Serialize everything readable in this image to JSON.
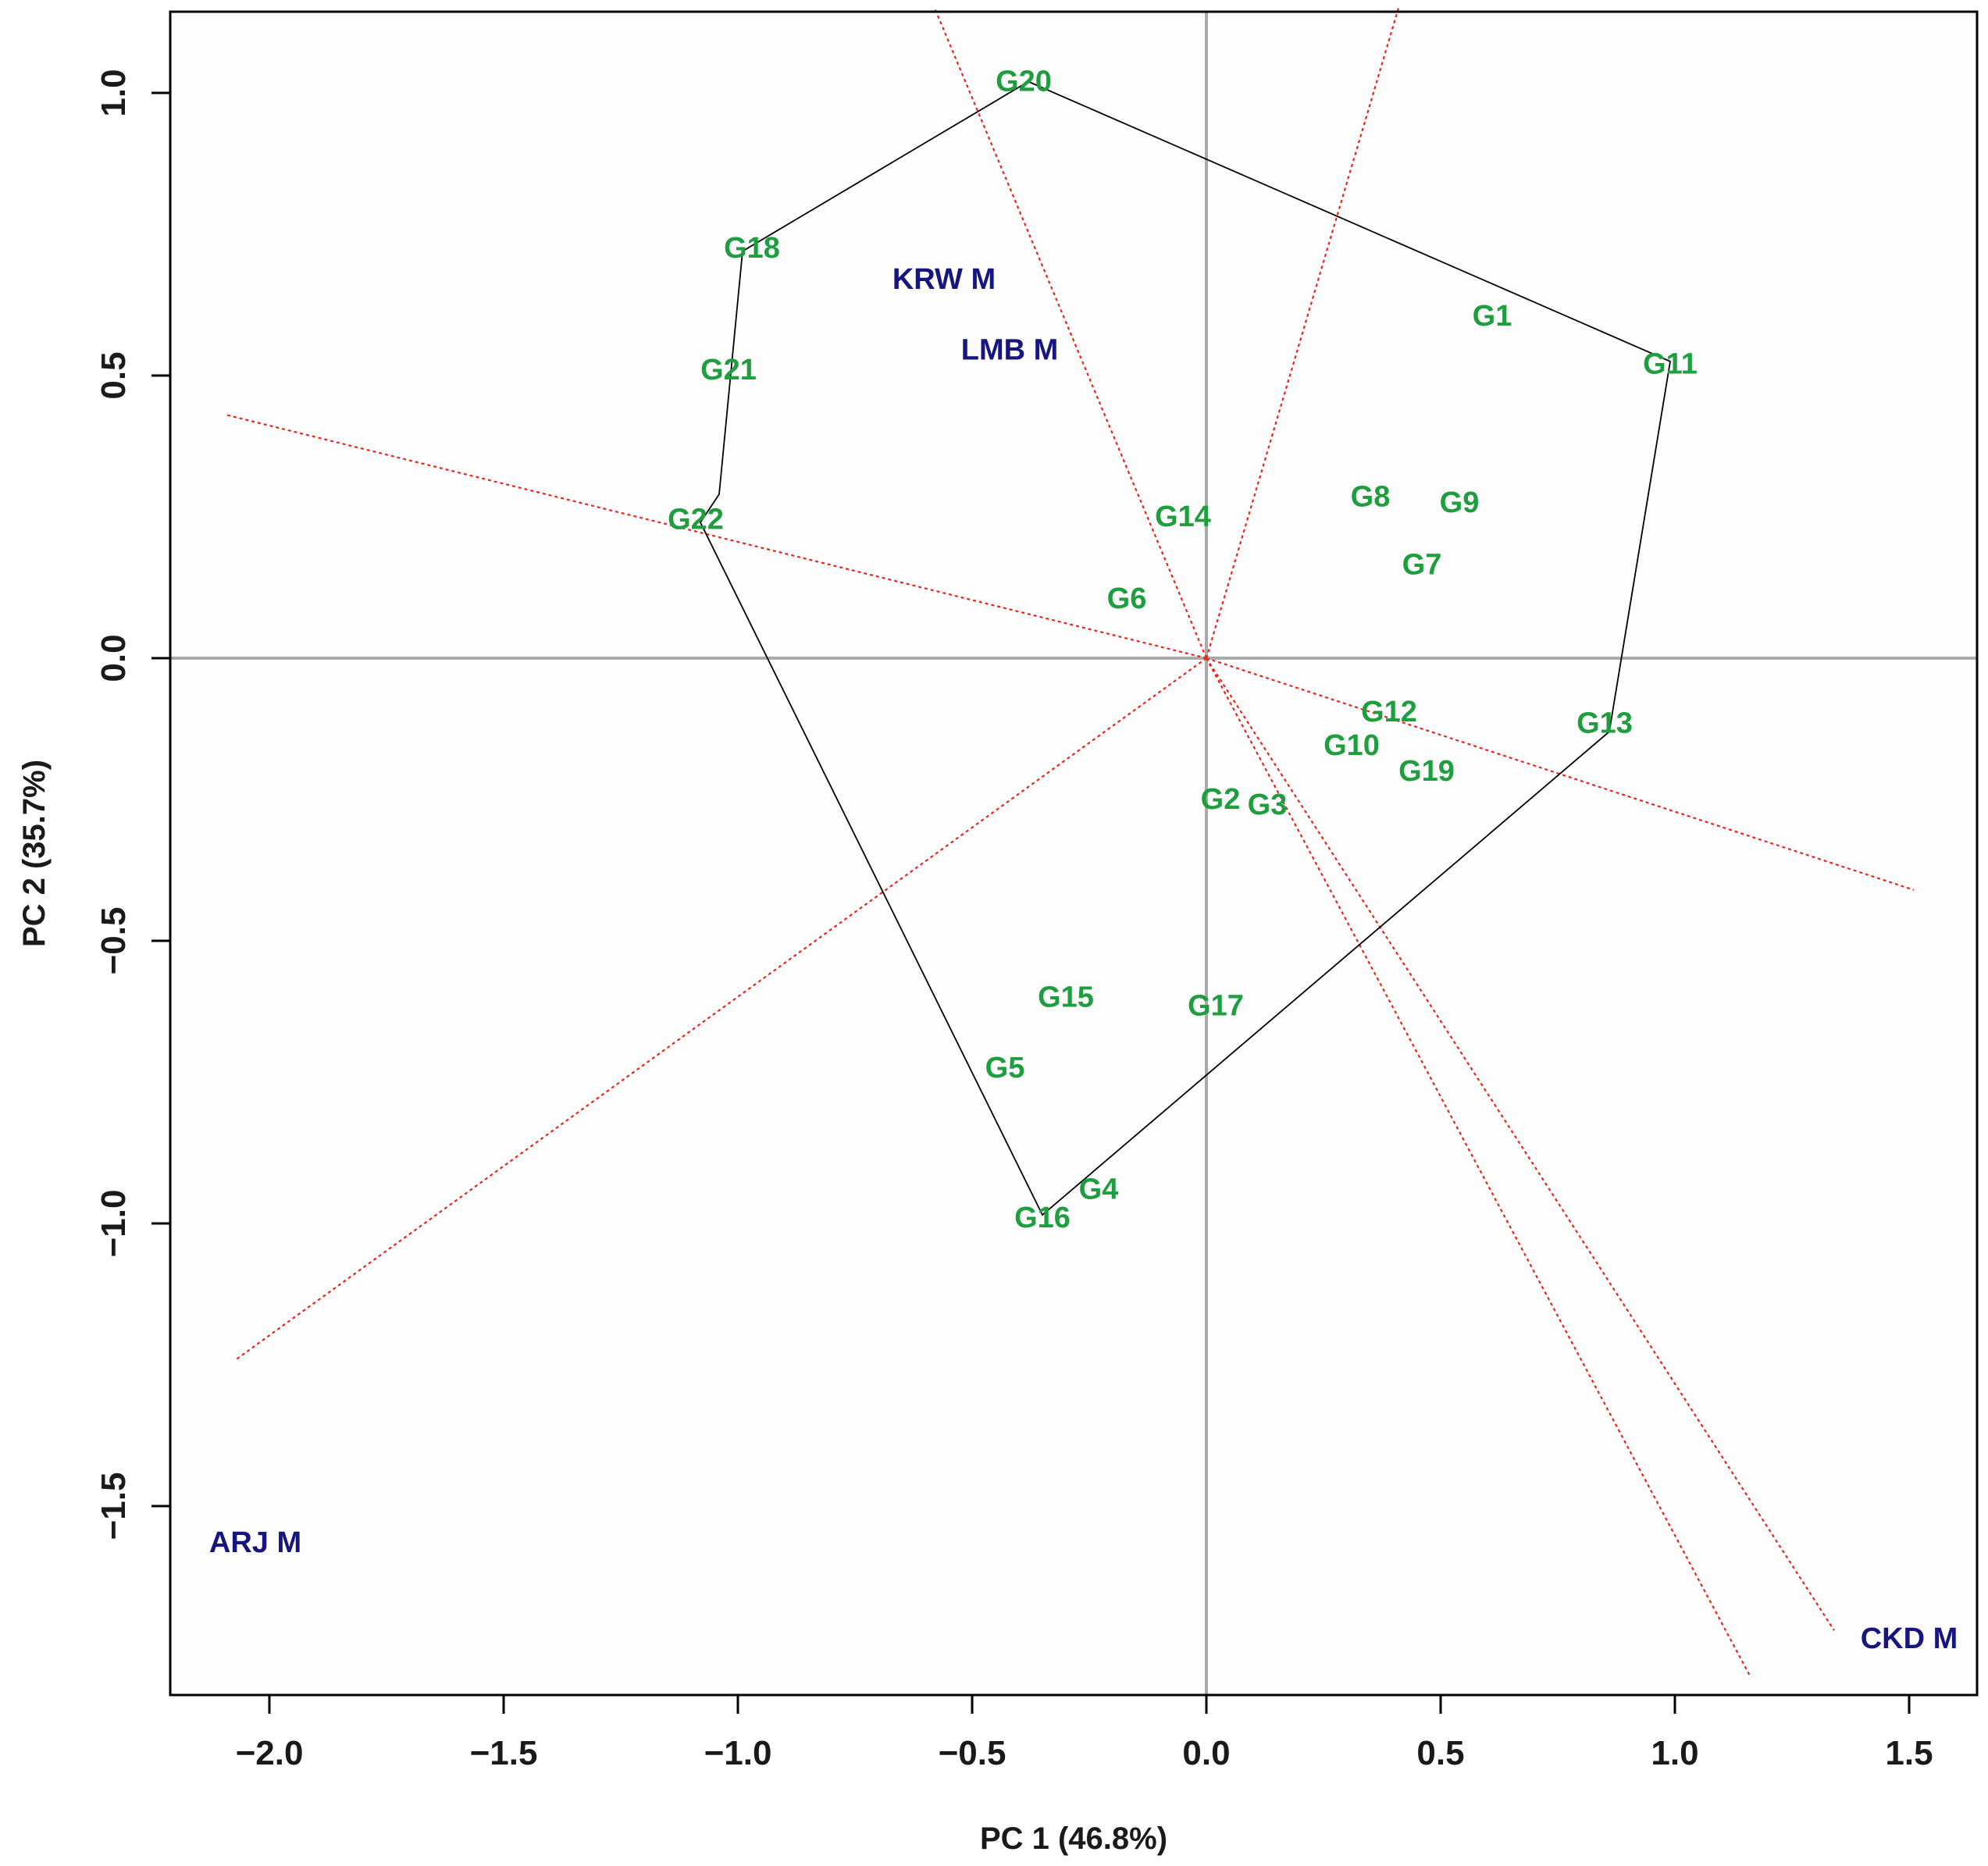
{
  "chart_data": {
    "type": "scatter",
    "subtype": "GGE biplot (which-won-where)",
    "title": "",
    "xlabel": "PC 1 (46.8%)",
    "ylabel": "PC 2 (35.7%)",
    "xlim": [
      -2.22,
      1.65
    ],
    "ylim": [
      -1.8,
      1.15
    ],
    "xticks": [
      -2.0,
      -1.5,
      -1.0,
      -0.5,
      0.0,
      0.5,
      1.0,
      1.5
    ],
    "xtick_labels": [
      "−2.0",
      "−1.5",
      "−1.0",
      "−0.5",
      "0.0",
      "0.5",
      "1.0",
      "1.5"
    ],
    "yticks": [
      -1.5,
      -1.0,
      -0.5,
      0.0,
      0.5,
      1.0
    ],
    "ytick_labels": [
      "−1.5",
      "−1.0",
      "−0.5",
      "0.0",
      "0.5",
      "1.0"
    ],
    "grid": false,
    "colors": {
      "genotype": "#1e9e3e",
      "environment": "#16167e",
      "hull": "#000000",
      "sector_rays": "#e8261c",
      "reference_axes": "#aaaaaa",
      "frame": "#000000"
    },
    "genotypes": [
      {
        "label": "G1",
        "x": 0.61,
        "y": 0.605
      },
      {
        "label": "G2",
        "x": 0.03,
        "y": -0.25
      },
      {
        "label": "G3",
        "x": 0.13,
        "y": -0.26
      },
      {
        "label": "G4",
        "x": -0.23,
        "y": -0.94
      },
      {
        "label": "G5",
        "x": -0.43,
        "y": -0.725
      },
      {
        "label": "G6",
        "x": -0.17,
        "y": 0.105
      },
      {
        "label": "G7",
        "x": 0.46,
        "y": 0.165
      },
      {
        "label": "G8",
        "x": 0.35,
        "y": 0.285
      },
      {
        "label": "G9",
        "x": 0.54,
        "y": 0.275
      },
      {
        "label": "G10",
        "x": 0.31,
        "y": -0.155
      },
      {
        "label": "G11",
        "x": 0.99,
        "y": 0.52
      },
      {
        "label": "G12",
        "x": 0.39,
        "y": -0.095
      },
      {
        "label": "G13",
        "x": 0.85,
        "y": -0.115
      },
      {
        "label": "G14",
        "x": -0.05,
        "y": 0.25
      },
      {
        "label": "G15",
        "x": -0.3,
        "y": -0.6
      },
      {
        "label": "G16",
        "x": -0.35,
        "y": -0.99
      },
      {
        "label": "G17",
        "x": 0.02,
        "y": -0.615
      },
      {
        "label": "G18",
        "x": -0.97,
        "y": 0.725
      },
      {
        "label": "G19",
        "x": 0.47,
        "y": -0.2
      },
      {
        "label": "G20",
        "x": -0.39,
        "y": 1.02
      },
      {
        "label": "G21",
        "x": -1.02,
        "y": 0.51
      },
      {
        "label": "G22",
        "x": -1.09,
        "y": 0.245
      }
    ],
    "environments": [
      {
        "label": "KRW M",
        "x": -0.56,
        "y": 0.67
      },
      {
        "label": "LMB M",
        "x": -0.42,
        "y": 0.545
      },
      {
        "label": "ARJ M",
        "x": -2.03,
        "y": -1.565
      },
      {
        "label": "CKD M",
        "x": 1.5,
        "y": -1.735
      }
    ],
    "convex_hull": [
      [
        -0.38,
        1.02
      ],
      [
        0.99,
        0.525
      ],
      [
        0.86,
        -0.13
      ],
      [
        -0.35,
        -0.985
      ],
      [
        -1.08,
        0.24
      ],
      [
        -1.04,
        0.29
      ],
      [
        -0.99,
        0.72
      ],
      [
        -0.38,
        1.02
      ]
    ],
    "sector_rays": [
      {
        "x": -0.58,
        "y": 1.15
      },
      {
        "x": 0.41,
        "y": 1.15
      },
      {
        "x": 1.51,
        "y": -0.41
      },
      {
        "x": 1.34,
        "y": -1.72
      },
      {
        "x": 1.16,
        "y": -1.8
      },
      {
        "x": -2.07,
        "y": -1.24
      },
      {
        "x": -2.09,
        "y": 0.43
      }
    ]
  }
}
